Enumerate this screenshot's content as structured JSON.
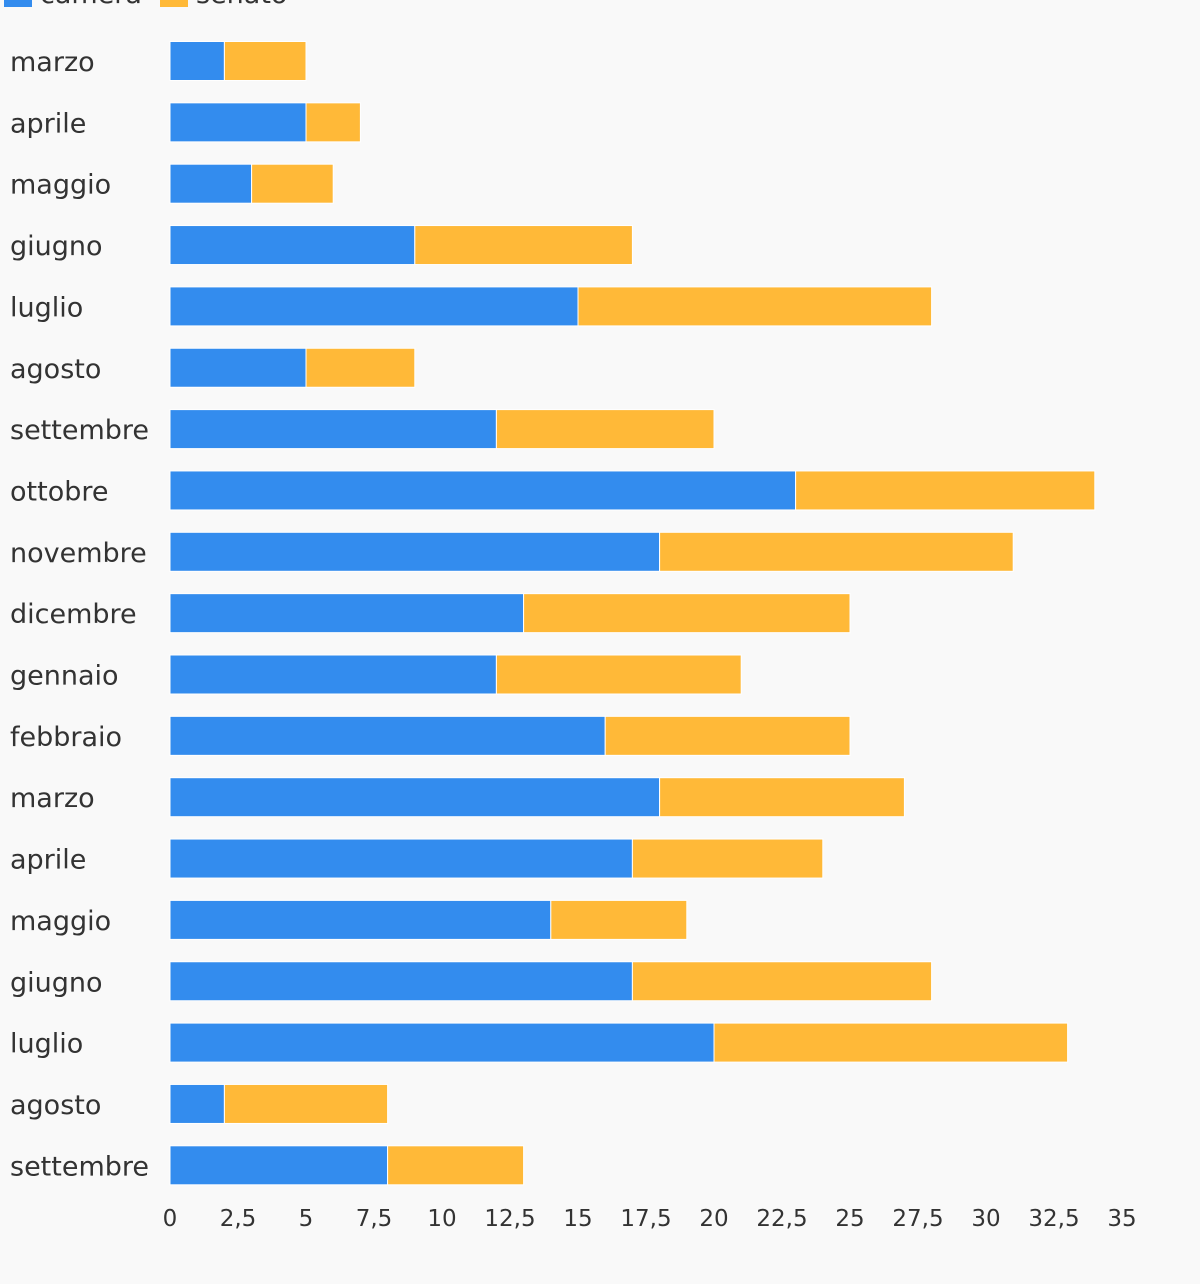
{
  "chart_data": {
    "type": "bar",
    "orientation": "horizontal",
    "stacked": true,
    "title": "",
    "xlabel": "",
    "ylabel": "",
    "categories": [
      "marzo",
      "aprile",
      "maggio",
      "giugno",
      "luglio",
      "agosto",
      "settembre",
      "ottobre",
      "novembre",
      "dicembre",
      "gennaio",
      "febbraio",
      "marzo",
      "aprile",
      "maggio",
      "giugno",
      "luglio",
      "agosto",
      "settembre"
    ],
    "series": [
      {
        "name": "camera",
        "color": "#338cee",
        "values": [
          2,
          5,
          3,
          9,
          15,
          5,
          12,
          23,
          18,
          13,
          12,
          16,
          18,
          17,
          14,
          17,
          20,
          2,
          8
        ]
      },
      {
        "name": "senato",
        "color": "#ffb938",
        "values": [
          3,
          2,
          3,
          8,
          13,
          4,
          8,
          11,
          13,
          12,
          9,
          9,
          9,
          7,
          5,
          11,
          13,
          6,
          5
        ]
      }
    ],
    "xlim": [
      0,
      35
    ],
    "xticks": [
      "0",
      "2,5",
      "5",
      "7,5",
      "10",
      "12,5",
      "15",
      "17,5",
      "20",
      "22,5",
      "25",
      "27,5",
      "30",
      "32,5",
      "35"
    ],
    "grid": false,
    "legend": "top-left"
  }
}
